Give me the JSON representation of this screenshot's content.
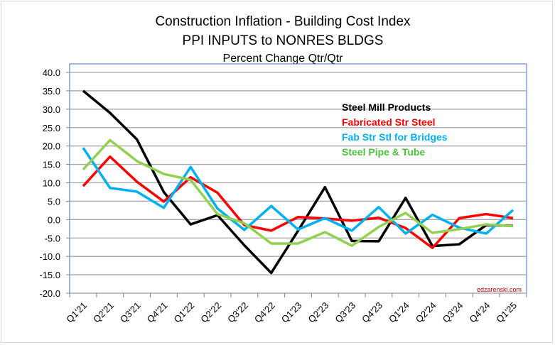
{
  "chart_data": {
    "type": "line",
    "title": "Construction Inflation - Building Cost Index",
    "subtitle": "PPI INPUTS  to NONRES BLDGS",
    "ylabel": "Percent Change Qtr/Qtr",
    "xlabel": "",
    "ylim": [
      -20,
      40
    ],
    "ytick_step": 5,
    "grid": true,
    "legend_position": "top-right",
    "watermark": "edzarenski.com",
    "categories": [
      "Q1'21",
      "Q2'21",
      "Q3'21",
      "Q4'21",
      "Q1'22",
      "Q2'22",
      "Q3'22",
      "Q4'22",
      "Q1'23",
      "Q2'23",
      "Q3'23",
      "Q4'23",
      "Q1'24",
      "Q2'24",
      "Q3'24",
      "Q4'24",
      "Q1'25"
    ],
    "series": [
      {
        "name": "Steel Mill Products",
        "color": "#000000",
        "values": [
          35.0,
          29.0,
          21.8,
          7.5,
          -1.3,
          1.2,
          -7.0,
          -14.5,
          -3.0,
          8.8,
          -5.8,
          -5.9,
          5.9,
          -7.2,
          -6.7,
          -1.5,
          -1.7
        ]
      },
      {
        "name": "Fabricated Str Steel",
        "color": "#ff0000",
        "values": [
          9.1,
          17.1,
          10.3,
          4.9,
          11.5,
          7.3,
          -1.5,
          -3.0,
          0.7,
          0.3,
          -0.3,
          0.5,
          -2.3,
          -7.7,
          0.4,
          1.5,
          0.4
        ]
      },
      {
        "name": "Fab Str Stl for Bridges",
        "color": "#00b0f0",
        "values": [
          19.5,
          8.6,
          7.6,
          3.2,
          14.3,
          3.0,
          -2.8,
          3.7,
          -2.7,
          0.4,
          -3.0,
          3.4,
          -3.8,
          1.3,
          -2.2,
          -3.8,
          2.6
        ]
      },
      {
        "name": "Steel Pipe & Tube",
        "color": "#92d050",
        "legend_color": "#4cc33a",
        "values": [
          13.6,
          21.6,
          15.9,
          12.4,
          10.8,
          1.5,
          -1.0,
          -6.5,
          -6.5,
          -3.4,
          -7.1,
          -2.0,
          1.8,
          -3.6,
          -2.6,
          -1.3,
          -1.8
        ]
      }
    ]
  }
}
